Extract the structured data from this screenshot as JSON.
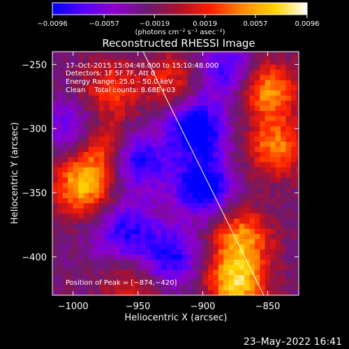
{
  "chart_data": {
    "type": "heatmap",
    "title": "Reconstructed RHESSI Image",
    "xlabel": "Heliocentric X (arcsec)",
    "ylabel": "Heliocentric Y (arcsec)",
    "xlim": [
      -1016,
      -826
    ],
    "ylim": [
      -430,
      -240
    ],
    "xticks": [
      {
        "value": -1000,
        "label": "−1000"
      },
      {
        "value": -950,
        "label": "−950"
      },
      {
        "value": -900,
        "label": "−900"
      },
      {
        "value": -850,
        "label": "−850"
      }
    ],
    "yticks": [
      {
        "value": -250,
        "label": "−250"
      },
      {
        "value": -300,
        "label": "−300"
      },
      {
        "value": -350,
        "label": "−350"
      },
      {
        "value": -400,
        "label": "−400"
      }
    ],
    "colorbar": {
      "range": [
        -0.0096,
        0.0096
      ],
      "unit_label": "(photons cm⁻² s⁻¹ asec⁻²)",
      "ticks": [
        {
          "value": -0.0096,
          "label": "−0.0096"
        },
        {
          "value": -0.0057,
          "label": "−0.0057"
        },
        {
          "value": -0.0019,
          "label": "−0.0019"
        },
        {
          "value": 0.0019,
          "label": "0.0019"
        },
        {
          "value": 0.0057,
          "label": "0.0057"
        },
        {
          "value": 0.0096,
          "label": "0.0096"
        }
      ],
      "colors": [
        "#0000ff",
        "#5a00ff",
        "#8e00c8",
        "#6a1a70",
        "#b0102a",
        "#ff2000",
        "#ff8c00",
        "#ffd400",
        "#ffffff"
      ]
    },
    "annotations": {
      "time_range": "17–Oct–2015 15:04:48.000 to 15:10:48.000",
      "detectors": "Detectors: 1F 5F 7F, Att 0",
      "energy_range": "Energy Range: 25.0 – 50.0 keV",
      "method_counts": "Clean    Total counts: 8.68E+03",
      "peak": "Position of Peak = [−874,−420]"
    },
    "limb_line": {
      "x": [
        -946,
        -853
      ],
      "y": [
        -240,
        -430
      ]
    },
    "sources": [
      {
        "x": -993,
        "y": -345,
        "value": 0.0085
      },
      {
        "x": -978,
        "y": -315,
        "value": 0.006
      },
      {
        "x": -972,
        "y": -270,
        "value": 0.0052
      },
      {
        "x": -925,
        "y": -262,
        "value": 0.0045
      },
      {
        "x": -850,
        "y": -270,
        "value": 0.0082
      },
      {
        "x": -843,
        "y": -315,
        "value": 0.007
      },
      {
        "x": -870,
        "y": -385,
        "value": 0.0075
      },
      {
        "x": -874,
        "y": -420,
        "value": 0.0096
      },
      {
        "x": -955,
        "y": -425,
        "value": 0.004
      },
      {
        "x": -905,
        "y": -300,
        "value": -0.009
      },
      {
        "x": -900,
        "y": -345,
        "value": -0.0085
      },
      {
        "x": -950,
        "y": -325,
        "value": -0.007
      },
      {
        "x": -960,
        "y": -380,
        "value": -0.006
      },
      {
        "x": -925,
        "y": -400,
        "value": -0.0065
      },
      {
        "x": -1000,
        "y": -300,
        "value": -0.005
      },
      {
        "x": -880,
        "y": -255,
        "value": -0.006
      }
    ]
  },
  "timestamp": "23–May–2022 16:41"
}
